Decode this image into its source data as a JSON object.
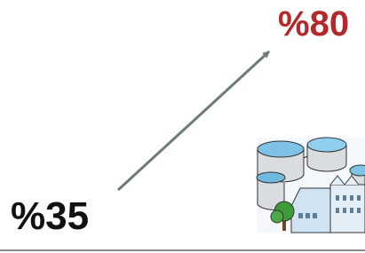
{
  "start": {
    "label": "%35"
  },
  "end": {
    "label": "%80"
  }
}
